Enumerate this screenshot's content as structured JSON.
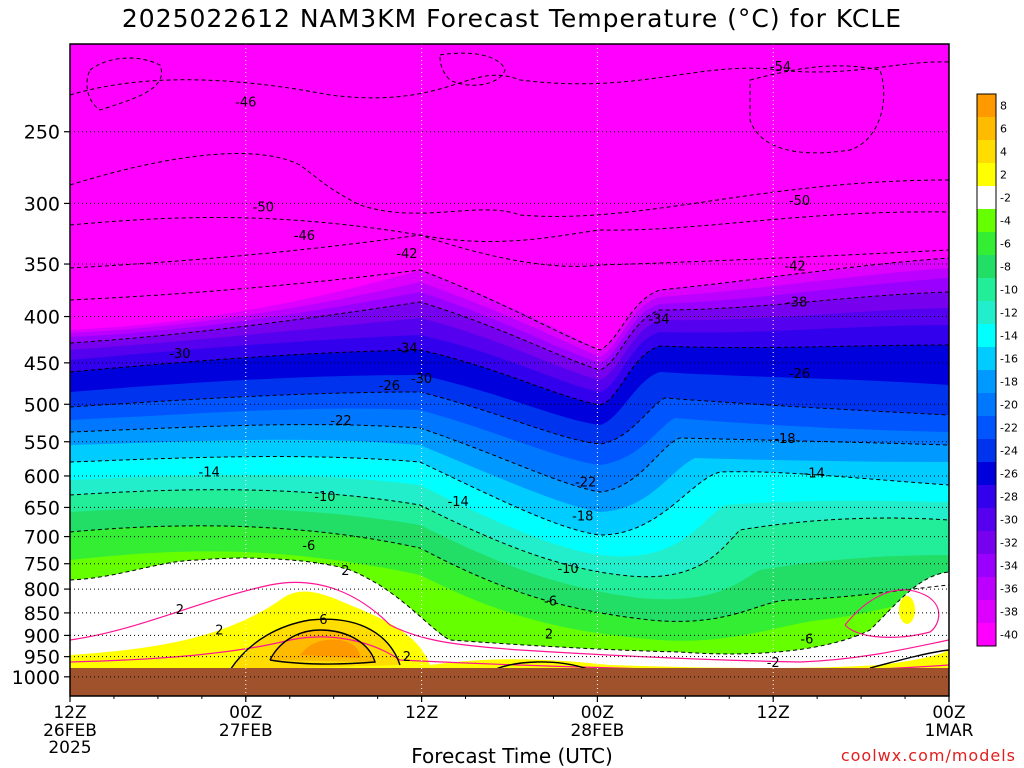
{
  "chart_data": {
    "type": "heatmap",
    "title": "2025022612 NAM3KM Forecast Temperature (°C) for KCLE",
    "xlabel": "Forecast Time (UTC)",
    "ylabel": "",
    "y_scale": "log",
    "y_reversed": true,
    "ylim": [
      1050,
      200
    ],
    "y_ticks": [
      250,
      300,
      350,
      400,
      450,
      500,
      550,
      600,
      650,
      700,
      750,
      800,
      850,
      900,
      950,
      1000
    ],
    "x_ticks": [
      {
        "line1": "12Z",
        "line2": "26FEB",
        "line3": "2025",
        "hour": 0
      },
      {
        "line1": "00Z",
        "line2": "27FEB",
        "line3": "",
        "hour": 12
      },
      {
        "line1": "12Z",
        "line2": "",
        "line3": "",
        "hour": 24
      },
      {
        "line1": "00Z",
        "line2": "28FEB",
        "line3": "",
        "hour": 36
      },
      {
        "line1": "12Z",
        "line2": "",
        "line3": "",
        "hour": 48
      },
      {
        "line1": "00Z",
        "line2": "1MAR",
        "line3": "",
        "hour": 60
      }
    ],
    "xlim": [
      0,
      60
    ],
    "grid": true,
    "colorbar": {
      "position": "right",
      "labels": [
        "8",
        "6",
        "4",
        "2",
        "-2",
        "-4",
        "-6",
        "-8",
        "-10",
        "-12",
        "-14",
        "-16",
        "-18",
        "-20",
        "-22",
        "-24",
        "-26",
        "-28",
        "-30",
        "-32",
        "-34",
        "-36",
        "-38",
        "-40"
      ],
      "colors": [
        "#ff9900",
        "#ffbb00",
        "#ffdd00",
        "#ffff00",
        "#ffffff",
        "#66ff00",
        "#33ee33",
        "#22dd66",
        "#22ee99",
        "#22eecc",
        "#00ffff",
        "#00ccff",
        "#0099ff",
        "#0077ff",
        "#0055ff",
        "#0033ee",
        "#0000dd",
        "#3300ee",
        "#5500ee",
        "#7700ee",
        "#9900ff",
        "#bb00ff",
        "#dd00ff",
        "#ff00ff"
      ]
    },
    "contour_labels": [
      {
        "text": "-54",
        "hour": 48.5,
        "p": 212
      },
      {
        "text": "-46",
        "hour": 12.0,
        "p": 232
      },
      {
        "text": "-50",
        "hour": 13.2,
        "p": 303
      },
      {
        "text": "-46",
        "hour": 16.0,
        "p": 326
      },
      {
        "text": "-42",
        "hour": 23.0,
        "p": 341
      },
      {
        "text": "-50",
        "hour": 49.8,
        "p": 298
      },
      {
        "text": "-42",
        "hour": 49.5,
        "p": 352
      },
      {
        "text": "-38",
        "hour": 49.6,
        "p": 386
      },
      {
        "text": "-34",
        "hour": 40.2,
        "p": 403
      },
      {
        "text": "-34",
        "hour": 23.0,
        "p": 434
      },
      {
        "text": "-30",
        "hour": 7.5,
        "p": 440
      },
      {
        "text": "-30",
        "hour": 24.0,
        "p": 469
      },
      {
        "text": "-26",
        "hour": 21.8,
        "p": 477
      },
      {
        "text": "-26",
        "hour": 49.8,
        "p": 463
      },
      {
        "text": "-22",
        "hour": 18.5,
        "p": 522
      },
      {
        "text": "-18",
        "hour": 48.8,
        "p": 546
      },
      {
        "text": "-14",
        "hour": 9.5,
        "p": 595
      },
      {
        "text": "-14",
        "hour": 50.8,
        "p": 596
      },
      {
        "text": "-14",
        "hour": 26.5,
        "p": 641
      },
      {
        "text": "-22",
        "hour": 35.2,
        "p": 610
      },
      {
        "text": "-18",
        "hour": 35.0,
        "p": 665
      },
      {
        "text": "-10",
        "hour": 17.4,
        "p": 633
      },
      {
        "text": "-6",
        "hour": 16.3,
        "p": 717
      },
      {
        "text": "-10",
        "hour": 34.0,
        "p": 760
      },
      {
        "text": "-6",
        "hour": 32.8,
        "p": 826
      },
      {
        "text": "-6",
        "hour": 50.3,
        "p": 910
      },
      {
        "text": "2",
        "hour": 18.8,
        "p": 764
      },
      {
        "text": "2",
        "hour": 7.5,
        "p": 844
      },
      {
        "text": "2",
        "hour": 10.2,
        "p": 889
      },
      {
        "text": "6",
        "hour": 17.3,
        "p": 865
      },
      {
        "text": "2",
        "hour": 23.0,
        "p": 951
      },
      {
        "text": "2",
        "hour": 32.7,
        "p": 898
      },
      {
        "text": "-2",
        "hour": 48.0,
        "p": 966
      }
    ]
  },
  "credit": "coolwx.com/models"
}
